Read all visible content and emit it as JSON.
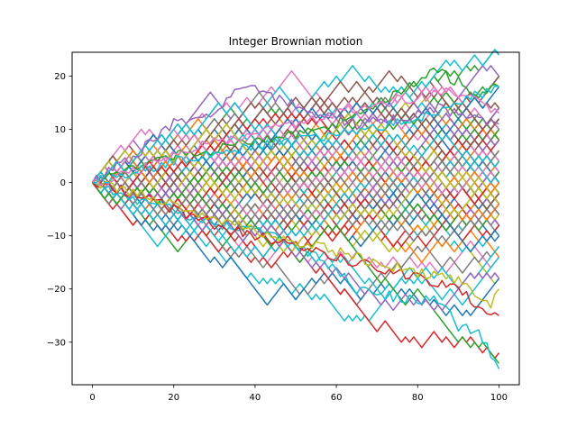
{
  "chart_data": {
    "type": "line",
    "title": "Integer Brownian motion",
    "xlabel": "",
    "ylabel": "",
    "xlim": [
      -5,
      105
    ],
    "ylim": [
      -38,
      24.5
    ],
    "xticks": [
      0,
      20,
      40,
      60,
      80,
      100
    ],
    "xtick_labels": [
      "0",
      "20",
      "40",
      "60",
      "80",
      "100"
    ],
    "yticks": [
      -30,
      -20,
      -10,
      0,
      10,
      20
    ],
    "ytick_labels": [
      "−30",
      "−20",
      "−10",
      "0",
      "10",
      "20"
    ],
    "grid": false,
    "legend": "none",
    "steps": 100,
    "num_series_approx": 100,
    "start_value": 0,
    "step_size": 1,
    "palette": [
      "#1f77b4",
      "#ff7f0e",
      "#2ca02c",
      "#d62728",
      "#9467bd",
      "#8c564b",
      "#e377c2",
      "#7f7f7f",
      "#bcbd22",
      "#17becf"
    ],
    "extreme_series": [
      {
        "color": "#2ca02c",
        "x": [
          0,
          10,
          20,
          30,
          40,
          50,
          60,
          70,
          80,
          84,
          90,
          95,
          100
        ],
        "y": [
          0,
          3,
          5,
          6,
          8,
          9,
          11,
          15,
          19,
          21,
          19,
          16,
          18
        ]
      },
      {
        "color": "#17becf",
        "x": [
          0,
          10,
          20,
          30,
          40,
          50,
          60,
          65,
          70,
          80,
          85,
          90,
          95,
          100
        ],
        "y": [
          0,
          -3,
          -5,
          -8,
          -9,
          -12,
          -16,
          -20,
          -21,
          -22,
          -22,
          -27,
          -28,
          -35
        ]
      },
      {
        "color": "#9467bd",
        "x": [
          0,
          10,
          20,
          30,
          37,
          45,
          55,
          65,
          75,
          85,
          95,
          100
        ],
        "y": [
          0,
          5,
          11,
          13,
          18,
          16,
          13,
          11,
          12,
          14,
          12,
          11
        ]
      },
      {
        "color": "#d62728",
        "x": [
          0,
          10,
          20,
          30,
          40,
          50,
          60,
          70,
          80,
          90,
          96,
          100
        ],
        "y": [
          0,
          -2,
          -5,
          -8,
          -10,
          -12,
          -14,
          -16,
          -18,
          -20,
          -24,
          -25
        ]
      },
      {
        "color": "#e377c2",
        "x": [
          0,
          10,
          20,
          30,
          40,
          50,
          60,
          70,
          80,
          88,
          95,
          100
        ],
        "y": [
          0,
          2,
          5,
          8,
          9,
          11,
          13,
          15,
          16,
          17,
          15,
          13
        ]
      },
      {
        "color": "#bcbd22",
        "x": [
          0,
          10,
          20,
          30,
          40,
          50,
          60,
          70,
          80,
          90,
          98,
          100
        ],
        "y": [
          0,
          -2,
          -4,
          -7,
          -9,
          -11,
          -13,
          -15,
          -17,
          -18,
          -23,
          -20
        ]
      },
      {
        "color": "#17becf",
        "x": [
          0,
          20,
          40,
          60,
          80,
          90,
          100
        ],
        "y": [
          0,
          4,
          7,
          9,
          12,
          15,
          18
        ]
      }
    ]
  }
}
